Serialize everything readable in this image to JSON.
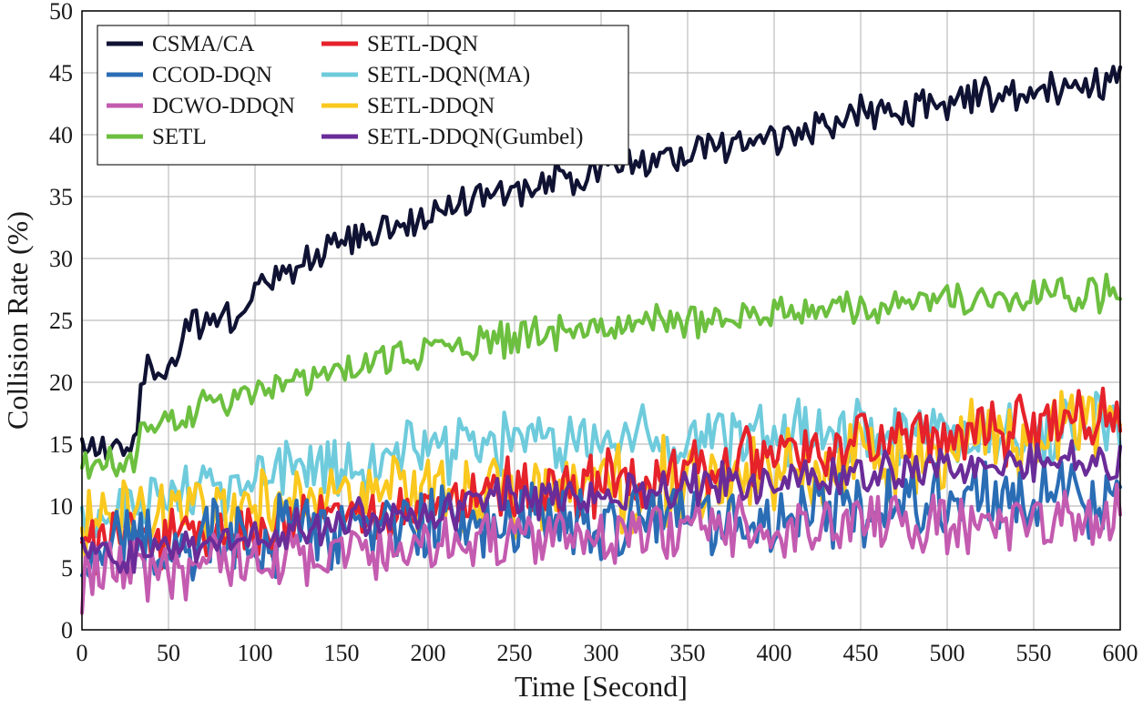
{
  "chart_data": {
    "type": "line",
    "title": "",
    "xlabel": "Time [Second]",
    "ylabel": "Collision Rate (%)",
    "xlim": [
      0,
      600
    ],
    "ylim": [
      0,
      50
    ],
    "xticks": [
      0,
      50,
      100,
      150,
      200,
      250,
      300,
      350,
      400,
      450,
      500,
      550,
      600
    ],
    "yticks": [
      0,
      5,
      10,
      15,
      20,
      25,
      30,
      35,
      40,
      45,
      50
    ],
    "grid": true,
    "legend_position": "top-left",
    "series": [
      {
        "name": "CSMA/CA",
        "color": "#0f1232",
        "noise": 1.2,
        "points": [
          [
            0,
            14.5
          ],
          [
            30,
            14.5
          ],
          [
            35,
            21
          ],
          [
            55,
            21
          ],
          [
            62,
            25
          ],
          [
            90,
            25
          ],
          [
            100,
            27.5
          ],
          [
            150,
            31
          ],
          [
            200,
            33.5
          ],
          [
            250,
            35.5
          ],
          [
            300,
            37
          ],
          [
            350,
            38.5
          ],
          [
            400,
            40
          ],
          [
            450,
            41.5
          ],
          [
            500,
            42.5
          ],
          [
            550,
            43.5
          ],
          [
            600,
            44.5
          ]
        ]
      },
      {
        "name": "SETL",
        "color": "#6cbf3f",
        "noise": 1.1,
        "points": [
          [
            0,
            13
          ],
          [
            30,
            13.5
          ],
          [
            35,
            16.5
          ],
          [
            60,
            16.5
          ],
          [
            65,
            18
          ],
          [
            90,
            18.5
          ],
          [
            100,
            19.5
          ],
          [
            150,
            21
          ],
          [
            200,
            22.5
          ],
          [
            250,
            23.5
          ],
          [
            300,
            24.5
          ],
          [
            350,
            25
          ],
          [
            400,
            25.7
          ],
          [
            450,
            26.2
          ],
          [
            500,
            26.6
          ],
          [
            550,
            27
          ],
          [
            600,
            27.3
          ]
        ]
      },
      {
        "name": "SETL-DQN(MA)",
        "color": "#6ecbdc",
        "noise": 2.2,
        "points": [
          [
            0,
            9
          ],
          [
            50,
            11
          ],
          [
            100,
            12.5
          ],
          [
            150,
            13.5
          ],
          [
            200,
            14.5
          ],
          [
            250,
            15
          ],
          [
            300,
            15.3
          ],
          [
            350,
            15.5
          ],
          [
            400,
            15.5
          ],
          [
            450,
            15.8
          ],
          [
            500,
            16
          ],
          [
            550,
            16.2
          ],
          [
            600,
            16.5
          ]
        ]
      },
      {
        "name": "SETL-DDQN",
        "color": "#fac81e",
        "noise": 2.8,
        "points": [
          [
            0,
            9
          ],
          [
            50,
            9
          ],
          [
            100,
            10
          ],
          [
            150,
            10.5
          ],
          [
            200,
            11
          ],
          [
            250,
            11
          ],
          [
            300,
            11.5
          ],
          [
            350,
            12
          ],
          [
            400,
            12.5
          ],
          [
            450,
            13.5
          ],
          [
            500,
            14.5
          ],
          [
            550,
            15.5
          ],
          [
            600,
            17
          ]
        ]
      },
      {
        "name": "SETL-DQN",
        "color": "#e6222a",
        "noise": 2.0,
        "points": [
          [
            0,
            7
          ],
          [
            50,
            7.5
          ],
          [
            100,
            8
          ],
          [
            150,
            9
          ],
          [
            200,
            10.5
          ],
          [
            250,
            11.5
          ],
          [
            300,
            12
          ],
          [
            350,
            13
          ],
          [
            400,
            14
          ],
          [
            450,
            15
          ],
          [
            500,
            15.5
          ],
          [
            550,
            16.5
          ],
          [
            600,
            17
          ]
        ]
      },
      {
        "name": "CCOD-DQN",
        "color": "#2a6db5",
        "noise": 2.5,
        "points": [
          [
            0,
            6
          ],
          [
            50,
            7
          ],
          [
            100,
            7.5
          ],
          [
            150,
            8
          ],
          [
            200,
            8.5
          ],
          [
            250,
            8.8
          ],
          [
            300,
            9
          ],
          [
            350,
            9
          ],
          [
            400,
            9.2
          ],
          [
            450,
            9.5
          ],
          [
            500,
            10
          ],
          [
            550,
            10.5
          ],
          [
            600,
            11
          ]
        ]
      },
      {
        "name": "DCWO-DDQN",
        "color": "#c35bb0",
        "noise": 2.0,
        "points": [
          [
            0,
            4
          ],
          [
            50,
            5
          ],
          [
            100,
            6
          ],
          [
            150,
            6.5
          ],
          [
            200,
            7
          ],
          [
            250,
            7.5
          ],
          [
            300,
            7.8
          ],
          [
            350,
            8
          ],
          [
            400,
            8
          ],
          [
            450,
            8.5
          ],
          [
            500,
            8.8
          ],
          [
            550,
            9
          ],
          [
            600,
            9.5
          ]
        ]
      },
      {
        "name": "SETL-DDQN(Gumbel)",
        "color": "#6a2c98",
        "noise": 1.4,
        "points": [
          [
            0,
            6
          ],
          [
            50,
            7
          ],
          [
            100,
            7.5
          ],
          [
            150,
            8.5
          ],
          [
            200,
            9.5
          ],
          [
            250,
            10.5
          ],
          [
            300,
            11
          ],
          [
            350,
            11.5
          ],
          [
            400,
            12
          ],
          [
            450,
            12.5
          ],
          [
            500,
            13
          ],
          [
            550,
            13.5
          ],
          [
            600,
            14
          ]
        ]
      }
    ]
  },
  "legend": {
    "left": [
      {
        "label": "CSMA/CA",
        "color": "#0f1232"
      },
      {
        "label": "CCOD-DQN",
        "color": "#2a6db5"
      },
      {
        "label": "DCWO-DDQN",
        "color": "#c35bb0"
      },
      {
        "label": "SETL",
        "color": "#6cbf3f"
      }
    ],
    "right": [
      {
        "label": "SETL-DQN",
        "color": "#e6222a"
      },
      {
        "label": "SETL-DQN(MA)",
        "color": "#6ecbdc"
      },
      {
        "label": "SETL-DDQN",
        "color": "#fac81e"
      },
      {
        "label": "SETL-DDQN(Gumbel)",
        "color": "#6a2c98"
      }
    ]
  }
}
